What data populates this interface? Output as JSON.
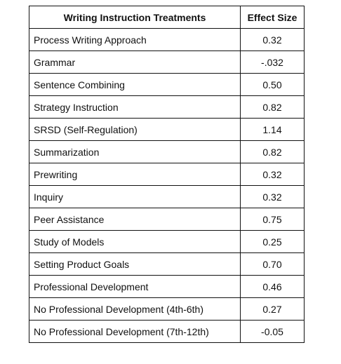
{
  "table": {
    "headers": {
      "treatment": "Writing Instruction Treatments",
      "effect": "Effect Size"
    },
    "rows": [
      {
        "treatment": "Process Writing Approach",
        "effect": "0.32"
      },
      {
        "treatment": "Grammar",
        "effect": "-.032"
      },
      {
        "treatment": "Sentence Combining",
        "effect": "0.50"
      },
      {
        "treatment": "Strategy Instruction",
        "effect": "0.82"
      },
      {
        "treatment": "SRSD (Self-Regulation)",
        "effect": "1.14"
      },
      {
        "treatment": "Summarization",
        "effect": "0.82"
      },
      {
        "treatment": "Prewriting",
        "effect": "0.32"
      },
      {
        "treatment": "Inquiry",
        "effect": "0.32"
      },
      {
        "treatment": "Peer Assistance",
        "effect": "0.75"
      },
      {
        "treatment": "Study of Models",
        "effect": "0.25"
      },
      {
        "treatment": "Setting Product Goals",
        "effect": "0.70"
      },
      {
        "treatment": "Professional Development",
        "effect": "0.46"
      },
      {
        "treatment": "No Professional Development (4th-6th)",
        "effect": "0.27"
      },
      {
        "treatment": "No Professional Development (7th-12th)",
        "effect": "-0.05"
      }
    ]
  }
}
